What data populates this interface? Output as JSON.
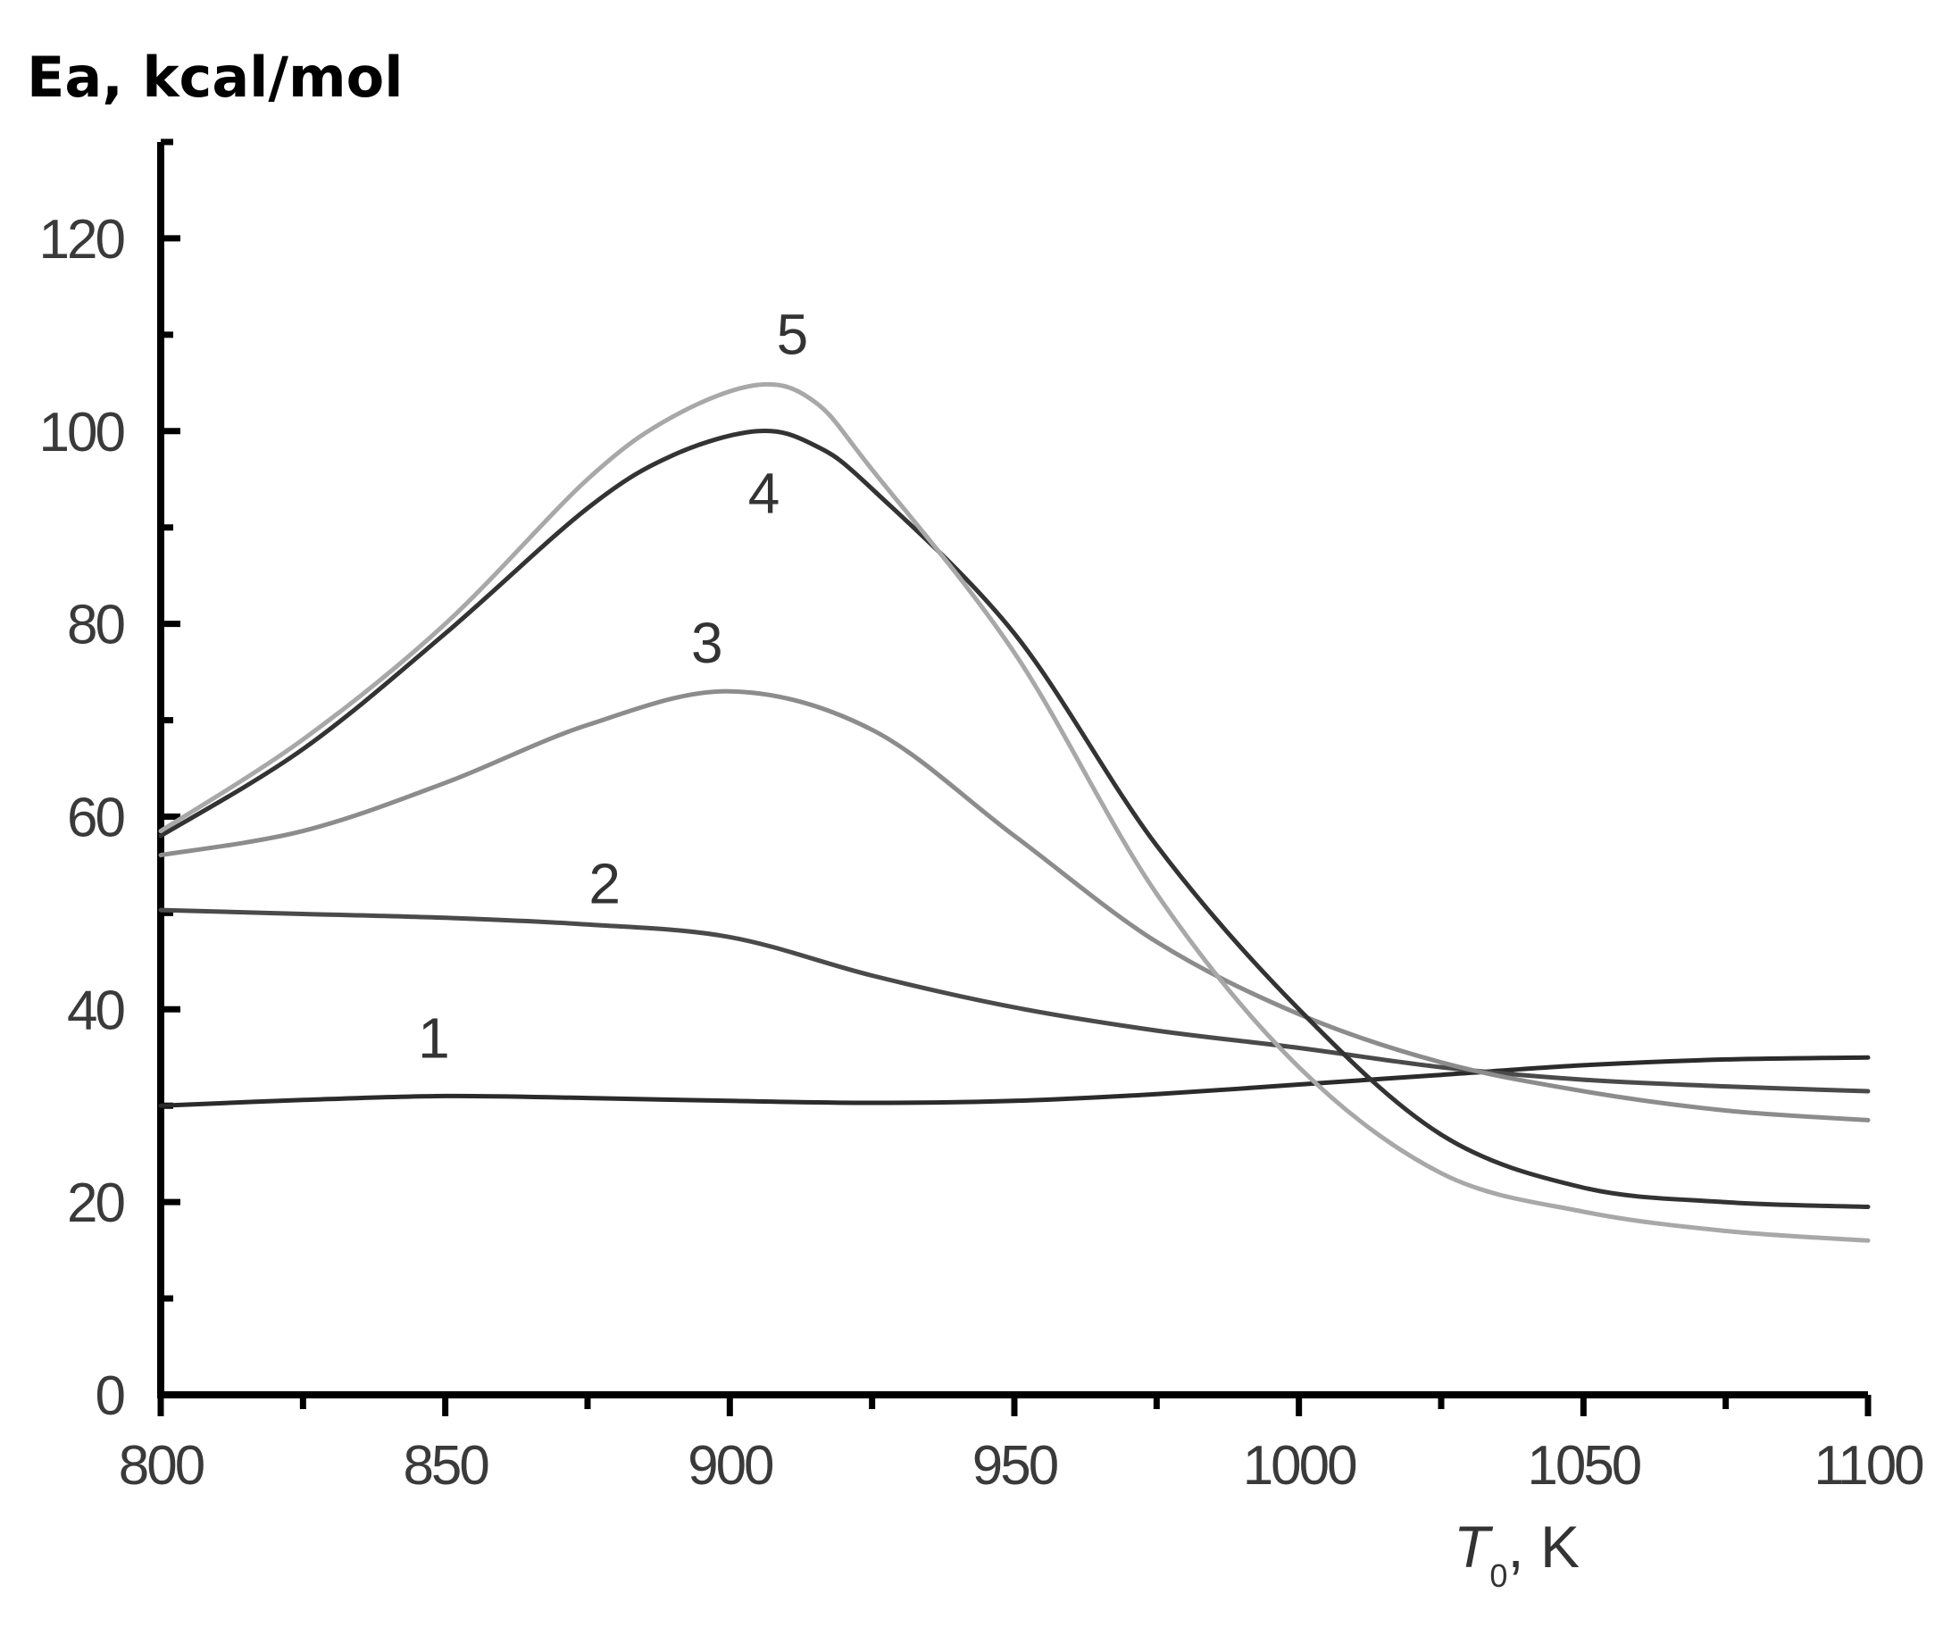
{
  "chart_data": {
    "type": "line",
    "title": "",
    "ylabel": "Ea, kcal/mol",
    "xlabel": {
      "symbol": "T",
      "subscript": "0",
      "unit": ", K"
    },
    "xlim": [
      800,
      1100
    ],
    "ylim": [
      0,
      130
    ],
    "x_ticks": [
      800,
      850,
      900,
      950,
      1000,
      1050,
      1100
    ],
    "y_ticks": [
      0,
      20,
      40,
      60,
      80,
      100,
      120
    ],
    "x_minor_step": 25,
    "y_minor_step": 10,
    "grid": false,
    "series": [
      {
        "name": "1",
        "color": "#2b2b2b",
        "label_at": [
          848,
          35
        ],
        "x": [
          800,
          825,
          850,
          875,
          900,
          925,
          950,
          975,
          1000,
          1025,
          1050,
          1075,
          1100
        ],
        "y": [
          30,
          30.6,
          31,
          30.8,
          30.5,
          30.3,
          30.5,
          31.2,
          32.2,
          33.2,
          34.2,
          34.8,
          35
        ]
      },
      {
        "name": "2",
        "color": "#4a4a4a",
        "label_at": [
          878,
          51
        ],
        "x": [
          800,
          825,
          850,
          875,
          900,
          925,
          950,
          975,
          1000,
          1025,
          1050,
          1075,
          1100
        ],
        "y": [
          50.3,
          49.9,
          49.5,
          48.8,
          47.5,
          43.5,
          40.2,
          37.8,
          36,
          34,
          32.7,
          32,
          31.5
        ]
      },
      {
        "name": "3",
        "color": "#8c8c8c",
        "label_at": [
          896,
          76
        ],
        "x": [
          800,
          825,
          850,
          875,
          900,
          925,
          950,
          975,
          1000,
          1025,
          1050,
          1075,
          1100
        ],
        "y": [
          56,
          58.5,
          63.5,
          69.5,
          73,
          69,
          58,
          47,
          39.5,
          34.5,
          31.5,
          29.5,
          28.5
        ]
      },
      {
        "name": "4",
        "color": "#333333",
        "label_at": [
          906,
          91.5
        ],
        "x": [
          800,
          825,
          850,
          875,
          890,
          905,
          915,
          925,
          950,
          975,
          1000,
          1025,
          1050,
          1075,
          1100
        ],
        "y": [
          58,
          67,
          79,
          92,
          97.5,
          100,
          98.5,
          94,
          79,
          57,
          40,
          27,
          21.5,
          20,
          19.5
        ]
      },
      {
        "name": "5",
        "color": "#a8a8a8",
        "label_at": [
          911,
          108
        ],
        "x": [
          800,
          825,
          850,
          875,
          890,
          905,
          915,
          925,
          950,
          975,
          1000,
          1025,
          1050,
          1075,
          1100
        ],
        "y": [
          58.5,
          68,
          80,
          95,
          101.5,
          104.8,
          103,
          96,
          77,
          52,
          34,
          23,
          19,
          17,
          16
        ]
      }
    ]
  }
}
